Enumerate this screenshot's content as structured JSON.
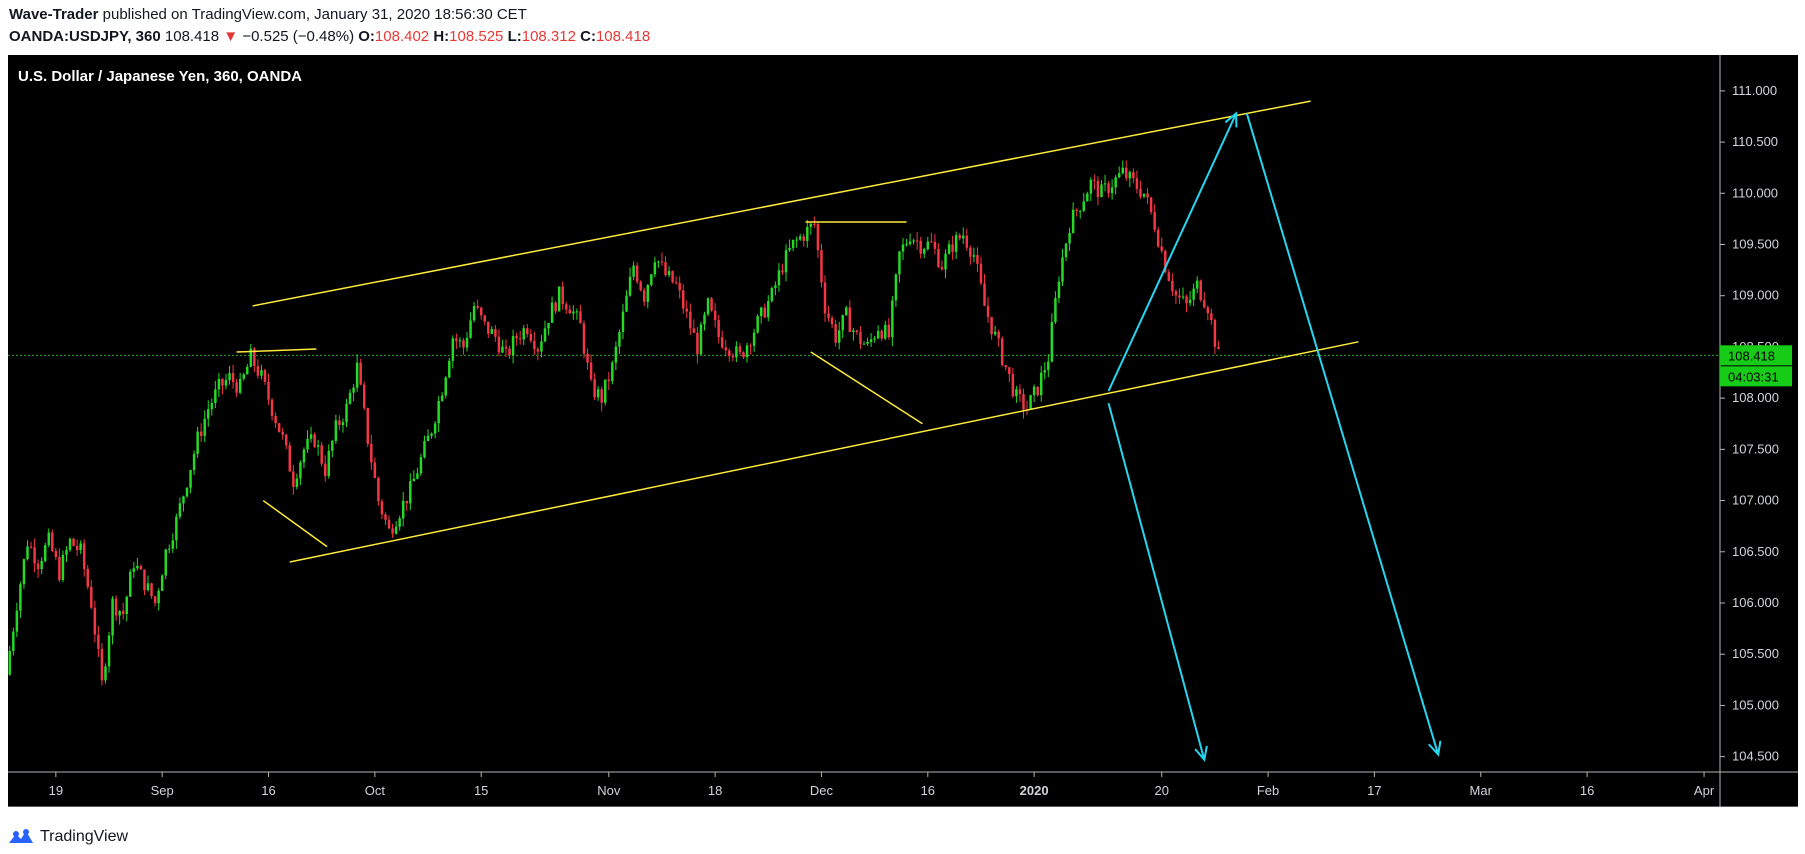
{
  "header": {
    "author": "Wave-Trader",
    "published_text": "published on TradingView.com, January 31, 2020 18:56:30 CET",
    "symbol": "OANDA:USDJPY, 360",
    "last_price": "108.418",
    "change": "−0.525 (−0.48%)",
    "o_label": "O:",
    "o_value": "108.402",
    "h_label": "H:",
    "h_value": "108.525",
    "l_label": "L:",
    "l_value": "108.312",
    "c_label": "C:",
    "c_value": "108.418"
  },
  "footer": {
    "brand": "TradingView"
  },
  "chart_data": {
    "type": "candlestick",
    "title": "U.S. Dollar / Japanese Yen, 360, OANDA",
    "ylim": [
      104.35,
      111.35
    ],
    "y_ticks": [
      "111.000",
      "110.500",
      "110.000",
      "109.500",
      "109.000",
      "108.500",
      "108.000",
      "107.500",
      "107.000",
      "106.500",
      "106.000",
      "105.500",
      "105.000",
      "104.500"
    ],
    "x_ticks": [
      {
        "label": "19",
        "bar": 4
      },
      {
        "label": "Sep",
        "bar": 14
      },
      {
        "label": "16",
        "bar": 24
      },
      {
        "label": "Oct",
        "bar": 34
      },
      {
        "label": "15",
        "bar": 44
      },
      {
        "label": "Nov",
        "bar": 56
      },
      {
        "label": "18",
        "bar": 66
      },
      {
        "label": "Dec",
        "bar": 76
      },
      {
        "label": "16",
        "bar": 86
      },
      {
        "label": "2020",
        "bar": 96
      },
      {
        "label": "20",
        "bar": 108
      },
      {
        "label": "Feb",
        "bar": 118
      },
      {
        "label": "17",
        "bar": 128
      },
      {
        "label": "Mar",
        "bar": 138
      },
      {
        "label": "16",
        "bar": 148
      },
      {
        "label": "Apr",
        "bar": 159
      }
    ],
    "bars_total": 161,
    "close_path": [
      [
        0,
        105.3
      ],
      [
        1,
        106.0
      ],
      [
        2,
        106.6
      ],
      [
        3,
        106.4
      ],
      [
        4,
        106.6
      ],
      [
        5,
        106.3
      ],
      [
        6,
        106.6
      ],
      [
        7,
        106.5
      ],
      [
        8,
        106.0
      ],
      [
        9,
        105.2
      ],
      [
        10,
        106.0
      ],
      [
        11,
        105.9
      ],
      [
        12,
        106.4
      ],
      [
        13,
        106.2
      ],
      [
        14,
        106.0
      ],
      [
        15,
        106.5
      ],
      [
        16,
        106.8
      ],
      [
        17,
        107.2
      ],
      [
        18,
        107.6
      ],
      [
        19,
        107.9
      ],
      [
        20,
        108.1
      ],
      [
        21,
        108.2
      ],
      [
        22,
        108.1
      ],
      [
        23,
        108.4
      ],
      [
        24,
        108.2
      ],
      [
        25,
        107.9
      ],
      [
        26,
        107.6
      ],
      [
        27,
        107.2
      ],
      [
        28,
        107.5
      ],
      [
        29,
        107.6
      ],
      [
        30,
        107.3
      ],
      [
        31,
        107.7
      ],
      [
        32,
        107.9
      ],
      [
        33,
        108.3
      ],
      [
        34,
        107.6
      ],
      [
        35,
        107.0
      ],
      [
        36,
        106.7
      ],
      [
        37,
        106.9
      ],
      [
        38,
        107.1
      ],
      [
        39,
        107.4
      ],
      [
        40,
        107.7
      ],
      [
        41,
        108.1
      ],
      [
        42,
        108.6
      ],
      [
        43,
        108.5
      ],
      [
        44,
        108.9
      ],
      [
        45,
        108.7
      ],
      [
        46,
        108.6
      ],
      [
        47,
        108.4
      ],
      [
        48,
        108.6
      ],
      [
        49,
        108.7
      ],
      [
        50,
        108.5
      ],
      [
        51,
        108.8
      ],
      [
        52,
        109.0
      ],
      [
        53,
        108.9
      ],
      [
        54,
        108.7
      ],
      [
        55,
        108.1
      ],
      [
        56,
        108.0
      ],
      [
        57,
        108.3
      ],
      [
        58,
        108.8
      ],
      [
        59,
        109.3
      ],
      [
        60,
        109.0
      ],
      [
        61,
        109.4
      ],
      [
        62,
        109.2
      ],
      [
        63,
        109.1
      ],
      [
        64,
        108.8
      ],
      [
        65,
        108.5
      ],
      [
        66,
        108.9
      ],
      [
        67,
        108.6
      ],
      [
        68,
        108.5
      ],
      [
        69,
        108.4
      ],
      [
        70,
        108.6
      ],
      [
        71,
        108.8
      ],
      [
        72,
        109.0
      ],
      [
        73,
        109.3
      ],
      [
        74,
        109.5
      ],
      [
        75,
        109.6
      ],
      [
        76,
        109.7
      ],
      [
        77,
        108.9
      ],
      [
        78,
        108.6
      ],
      [
        79,
        108.8
      ],
      [
        80,
        108.6
      ],
      [
        81,
        108.5
      ],
      [
        82,
        108.7
      ],
      [
        83,
        108.6
      ],
      [
        84,
        109.4
      ],
      [
        85,
        109.6
      ],
      [
        86,
        109.5
      ],
      [
        87,
        109.5
      ],
      [
        88,
        109.3
      ],
      [
        89,
        109.5
      ],
      [
        90,
        109.6
      ],
      [
        91,
        109.4
      ],
      [
        92,
        108.9
      ],
      [
        93,
        108.6
      ],
      [
        94,
        108.3
      ],
      [
        95,
        108.0
      ],
      [
        96,
        107.9
      ],
      [
        97,
        108.1
      ],
      [
        98,
        108.4
      ],
      [
        99,
        109.2
      ],
      [
        100,
        109.7
      ],
      [
        101,
        109.9
      ],
      [
        102,
        110.1
      ],
      [
        103,
        110.0
      ],
      [
        104,
        110.1
      ],
      [
        105,
        110.2
      ],
      [
        106,
        110.1
      ],
      [
        107,
        110.0
      ],
      [
        108,
        109.7
      ],
      [
        109,
        109.3
      ],
      [
        110,
        109.0
      ],
      [
        111,
        108.9
      ],
      [
        112,
        109.1
      ],
      [
        113,
        108.9
      ],
      [
        114,
        108.4
      ]
    ],
    "last_price_label": "108.418",
    "countdown_label": "04:03:31",
    "annotations": {
      "channel_upper": [
        [
          22.5,
          108.9
        ],
        [
          122,
          110.9
        ]
      ],
      "channel_lower": [
        [
          26,
          106.4
        ],
        [
          126.5,
          108.55
        ]
      ],
      "triangle_top": [
        [
          21,
          108.45
        ],
        [
          28.5,
          108.48
        ]
      ],
      "triangle_bottom": [
        [
          23.5,
          107.0
        ],
        [
          29.5,
          106.55
        ]
      ],
      "wedge_top": [
        [
          74.5,
          109.72
        ],
        [
          84,
          109.72
        ]
      ],
      "wedge_bottom": [
        [
          75,
          108.45
        ],
        [
          85.5,
          107.75
        ]
      ],
      "projection_up": [
        [
          103,
          108.07
        ],
        [
          115,
          110.78
        ]
      ],
      "projection_down_left": [
        [
          103,
          107.95
        ],
        [
          112,
          104.47
        ]
      ],
      "projection_down_right": [
        [
          116,
          110.78
        ],
        [
          134,
          104.52
        ]
      ]
    },
    "colors": {
      "up": "#26d926",
      "down": "#f23645",
      "channel": "#ffeb3b",
      "projection": "#26d6f0",
      "background": "#000000",
      "axis_text": "#d1d4dc",
      "price_line": "#26a626"
    }
  }
}
